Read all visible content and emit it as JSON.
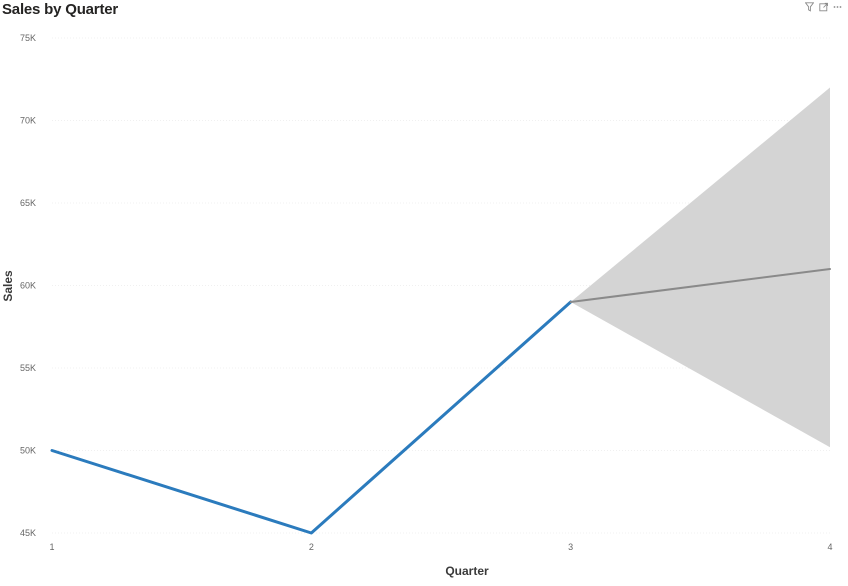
{
  "visual": {
    "title": "Sales by Quarter",
    "header_icons": [
      "filter-icon",
      "focus-mode-icon",
      "more-options-icon"
    ]
  },
  "chart_data": {
    "type": "line",
    "title": "Sales by Quarter",
    "xlabel": "Quarter",
    "ylabel": "Sales",
    "x": [
      1,
      2,
      3,
      4
    ],
    "x_tick_labels": [
      "1",
      "2",
      "3",
      "4"
    ],
    "ylim": [
      45000,
      75000
    ],
    "y_ticks": [
      45000,
      50000,
      55000,
      60000,
      65000,
      70000,
      75000
    ],
    "y_tick_labels": [
      "45K",
      "50K",
      "55K",
      "60K",
      "65K",
      "70K",
      "75K"
    ],
    "grid": true,
    "series": [
      {
        "role": "actual",
        "color": "#2b7bbd",
        "points": [
          {
            "x": 1,
            "y": 50000
          },
          {
            "x": 2,
            "y": 45000
          },
          {
            "x": 3,
            "y": 59000
          }
        ]
      },
      {
        "role": "forecast",
        "color": "#8a8a8a",
        "points": [
          {
            "x": 3,
            "y": 59000
          },
          {
            "x": 4,
            "y": 61000
          }
        ],
        "confidence_band": {
          "color": "#d4d4d4",
          "upper": [
            {
              "x": 3,
              "y": 59000
            },
            {
              "x": 4,
              "y": 72000
            }
          ],
          "lower": [
            {
              "x": 3,
              "y": 59000
            },
            {
              "x": 4,
              "y": 50200
            }
          ]
        }
      }
    ]
  }
}
